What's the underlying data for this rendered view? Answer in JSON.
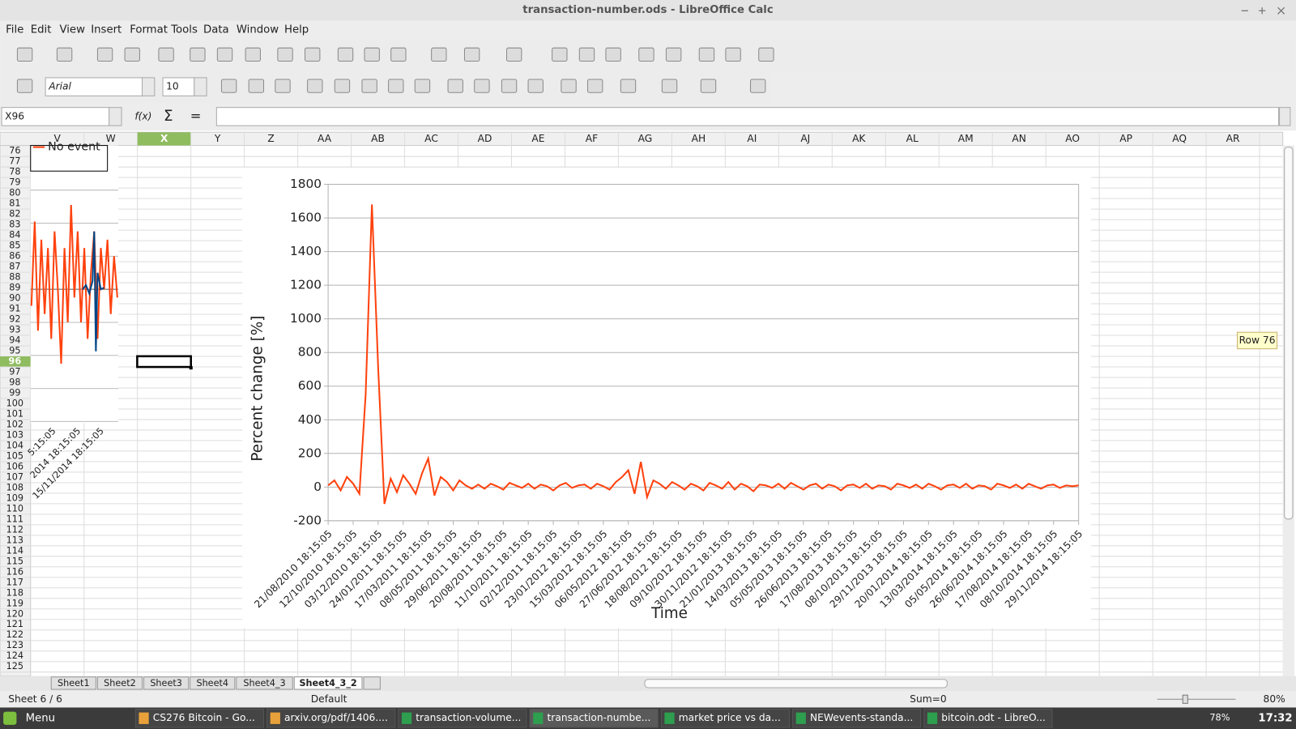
{
  "window": {
    "title": "transaction-number.ods - LibreOffice Calc"
  },
  "menu": [
    "File",
    "Edit",
    "View",
    "Insert",
    "Format",
    "Tools",
    "Data",
    "Window",
    "Help"
  ],
  "toolbar": {
    "font_name": "Arial",
    "font_size": "10"
  },
  "formula_bar": {
    "name_box": "X96",
    "function_label": "f(x)"
  },
  "sheet": {
    "columns": [
      "V",
      "W",
      "X",
      "Y",
      "Z",
      "AA",
      "AB",
      "AC",
      "AD",
      "AE",
      "AF",
      "AG",
      "AH",
      "AI",
      "AJ",
      "AK",
      "AL",
      "AM",
      "AN",
      "AO",
      "AP",
      "AQ",
      "AR"
    ],
    "rows": [
      76,
      77,
      78,
      79,
      80,
      81,
      82,
      83,
      84,
      85,
      86,
      87,
      88,
      89,
      90,
      91,
      92,
      93,
      94,
      95,
      96,
      97,
      98,
      99,
      100,
      101,
      102,
      103,
      104,
      105,
      106,
      107,
      108,
      109,
      110,
      111,
      112,
      113,
      114,
      115,
      116,
      117,
      118,
      119,
      120,
      121,
      122,
      123,
      124,
      125
    ],
    "tabs": [
      "Sheet1",
      "Sheet2",
      "Sheet3",
      "Sheet4",
      "Sheet4_3",
      "Sheet4_3_2"
    ],
    "tooltip": "Row 76"
  },
  "left_chart": {
    "legend": "No event",
    "labels": [
      "5:15:05",
      "2014 18:15:05",
      "15/11/2014 18:15:05"
    ]
  },
  "status_bar": {
    "sheet": "Sheet 6 / 6",
    "style": "Default",
    "sum": "Sum=0",
    "zoom": "80%"
  },
  "taskbar": {
    "menu": "Menu",
    "items": [
      "CS276 Bitcoin - Go...",
      "arxiv.org/pdf/1406....",
      "transaction-volume...",
      "transaction-numbe...",
      "market price vs da...",
      "NEWevents-standa...",
      "bitcoin.odt - LibreO..."
    ],
    "battery": "78%",
    "clock": "17:32"
  },
  "chart_data": {
    "type": "line",
    "y_label": "Percent change [%]",
    "x_label": "Time",
    "ylim": [
      -200,
      1800
    ],
    "yticks": [
      -200,
      0,
      200,
      400,
      600,
      800,
      1000,
      1200,
      1400,
      1600,
      1800
    ],
    "grid": true,
    "categories": [
      "21/08/2010 18:15:05",
      null,
      null,
      null,
      "12/10/2010 18:15:05",
      null,
      null,
      null,
      "03/12/2010 18:15:05",
      null,
      null,
      null,
      "24/01/2011 18:15:05",
      null,
      null,
      null,
      "17/03/2011 18:15:05",
      null,
      null,
      null,
      "08/05/2011 18:15:05",
      null,
      null,
      null,
      "29/06/2011 18:15:05",
      null,
      null,
      null,
      "20/08/2011 18:15:05",
      null,
      null,
      null,
      "11/10/2011 18:15:05",
      null,
      null,
      null,
      "02/12/2011 18:15:05",
      null,
      null,
      null,
      "23/01/2012 18:15:05",
      null,
      null,
      null,
      "15/03/2012 18:15:05",
      null,
      null,
      null,
      "06/05/2012 18:15:05",
      null,
      null,
      null,
      "27/06/2012 18:15:05",
      null,
      null,
      null,
      "18/08/2012 18:15:05",
      null,
      null,
      null,
      "09/10/2012 18:15:05",
      null,
      null,
      null,
      "30/11/2012 18:15:05",
      null,
      null,
      null,
      "21/01/2013 18:15:05",
      null,
      null,
      null,
      "14/03/2013 18:15:05",
      null,
      null,
      null,
      "05/05/2013 18:15:05",
      null,
      null,
      null,
      "26/06/2013 18:15:05",
      null,
      null,
      null,
      "17/08/2013 18:15:05",
      null,
      null,
      null,
      "08/10/2013 18:15:05",
      null,
      null,
      null,
      "29/11/2013 18:15:05",
      null,
      null,
      null,
      "20/01/2014 18:15:05",
      null,
      null,
      null,
      "13/03/2014 18:15:05",
      null,
      null,
      null,
      "05/05/2014 18:15:05",
      null,
      null,
      null,
      "26/06/2014 18:15:05",
      null,
      null,
      null,
      "17/08/2014 18:15:05",
      null,
      null,
      null,
      "08/10/2014 18:15:05",
      null,
      null,
      null,
      "29/11/2014 18:15:05"
    ],
    "series": [
      {
        "color": "#ff420e",
        "values": [
          10,
          40,
          -20,
          60,
          20,
          -40,
          550,
          1680,
          710,
          -100,
          50,
          -30,
          70,
          20,
          -40,
          80,
          170,
          -50,
          60,
          30,
          -20,
          40,
          10,
          -10,
          15,
          -10,
          20,
          5,
          -15,
          25,
          10,
          -5,
          20,
          -10,
          15,
          5,
          -20,
          10,
          25,
          -5,
          10,
          15,
          -10,
          20,
          5,
          -15,
          30,
          60,
          100,
          -40,
          150,
          -60,
          40,
          20,
          -10,
          30,
          10,
          -15,
          20,
          5,
          -20,
          25,
          10,
          -10,
          30,
          -15,
          20,
          5,
          -25,
          15,
          10,
          -5,
          20,
          -10,
          25,
          5,
          -15,
          10,
          20,
          -10,
          15,
          5,
          -20,
          10,
          15,
          -5,
          20,
          -10,
          10,
          5,
          -15,
          20,
          10,
          -5,
          15,
          -10,
          20,
          5,
          -15,
          10,
          15,
          -5,
          20,
          -10,
          10,
          5,
          -15,
          20,
          10,
          -5,
          15,
          -10,
          20,
          5,
          -10,
          10,
          15,
          -5,
          10,
          5,
          10
        ]
      }
    ]
  }
}
